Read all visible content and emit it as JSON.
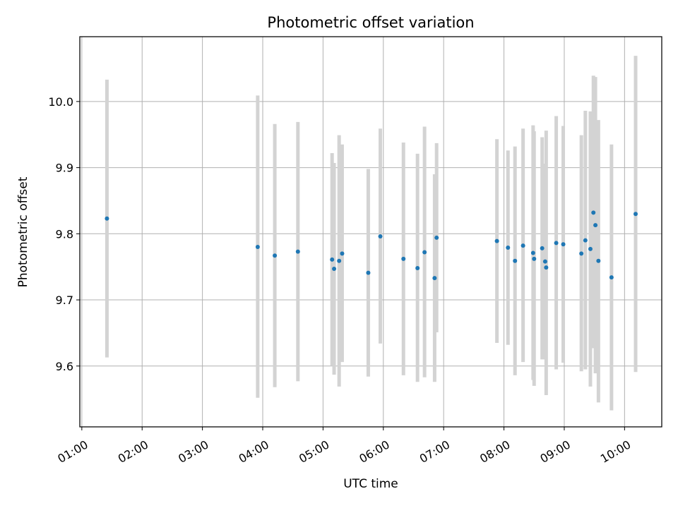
{
  "chart_data": {
    "type": "scatter",
    "title": "Photometric offset variation",
    "xlabel": "UTC time",
    "ylabel": "Photometric offset",
    "x_ticks": [
      "01:00",
      "02:00",
      "03:00",
      "04:00",
      "05:00",
      "06:00",
      "07:00",
      "08:00",
      "09:00",
      "10:00"
    ],
    "y_ticks": [
      "9.6",
      "9.7",
      "9.8",
      "9.9",
      "10.0"
    ],
    "y_tick_values": [
      9.6,
      9.7,
      9.8,
      9.9,
      10.0
    ],
    "xlim": [
      "00:58",
      "10:37"
    ],
    "ylim": [
      9.508,
      10.098
    ],
    "grid": true,
    "colors": {
      "point": "#1f77b4",
      "errorbar": "#d3d3d3",
      "grid": "#b0b0b0"
    },
    "points": [
      {
        "x": "01:25",
        "y": 9.823,
        "low": 9.613,
        "high": 10.033
      },
      {
        "x": "03:55",
        "y": 9.78,
        "low": 9.552,
        "high": 10.009
      },
      {
        "x": "04:12",
        "y": 9.767,
        "low": 9.568,
        "high": 9.966
      },
      {
        "x": "04:35",
        "y": 9.773,
        "low": 9.577,
        "high": 9.969
      },
      {
        "x": "05:09",
        "y": 9.761,
        "low": 9.6,
        "high": 9.922
      },
      {
        "x": "05:11",
        "y": 9.747,
        "low": 9.587,
        "high": 9.907
      },
      {
        "x": "05:16",
        "y": 9.759,
        "low": 9.569,
        "high": 9.949
      },
      {
        "x": "05:19",
        "y": 9.77,
        "low": 9.606,
        "high": 9.935
      },
      {
        "x": "05:45",
        "y": 9.741,
        "low": 9.584,
        "high": 9.898
      },
      {
        "x": "05:57",
        "y": 9.796,
        "low": 9.634,
        "high": 9.959
      },
      {
        "x": "06:20",
        "y": 9.762,
        "low": 9.586,
        "high": 9.938
      },
      {
        "x": "06:34",
        "y": 9.748,
        "low": 9.576,
        "high": 9.921
      },
      {
        "x": "06:41",
        "y": 9.772,
        "low": 9.583,
        "high": 9.962
      },
      {
        "x": "06:51",
        "y": 9.733,
        "low": 9.576,
        "high": 9.89
      },
      {
        "x": "06:53",
        "y": 9.794,
        "low": 9.651,
        "high": 9.937
      },
      {
        "x": "07:53",
        "y": 9.789,
        "low": 9.635,
        "high": 9.943
      },
      {
        "x": "08:04",
        "y": 9.779,
        "low": 9.632,
        "high": 9.926
      },
      {
        "x": "08:11",
        "y": 9.759,
        "low": 9.586,
        "high": 9.932
      },
      {
        "x": "08:19",
        "y": 9.782,
        "low": 9.606,
        "high": 9.959
      },
      {
        "x": "08:29",
        "y": 9.771,
        "low": 9.579,
        "high": 9.964
      },
      {
        "x": "08:30",
        "y": 9.762,
        "low": 9.57,
        "high": 9.955
      },
      {
        "x": "08:38",
        "y": 9.778,
        "low": 9.61,
        "high": 9.946
      },
      {
        "x": "08:42",
        "y": 9.749,
        "low": 9.556,
        "high": 9.956
      },
      {
        "x": "08:41",
        "y": 9.758,
        "low": 9.61,
        "high": 9.906
      },
      {
        "x": "08:52",
        "y": 9.786,
        "low": 9.595,
        "high": 9.978
      },
      {
        "x": "08:59",
        "y": 9.784,
        "low": 9.605,
        "high": 9.963
      },
      {
        "x": "09:17",
        "y": 9.77,
        "low": 9.592,
        "high": 9.949
      },
      {
        "x": "09:21",
        "y": 9.79,
        "low": 9.595,
        "high": 9.986
      },
      {
        "x": "09:26",
        "y": 9.777,
        "low": 9.569,
        "high": 9.985
      },
      {
        "x": "09:29",
        "y": 9.832,
        "low": 9.627,
        "high": 10.039
      },
      {
        "x": "09:31",
        "y": 9.813,
        "low": 9.589,
        "high": 10.037
      },
      {
        "x": "09:34",
        "y": 9.759,
        "low": 9.545,
        "high": 9.972
      },
      {
        "x": "09:47",
        "y": 9.734,
        "low": 9.533,
        "high": 9.935
      },
      {
        "x": "10:11",
        "y": 9.83,
        "low": 9.591,
        "high": 10.069
      }
    ]
  }
}
